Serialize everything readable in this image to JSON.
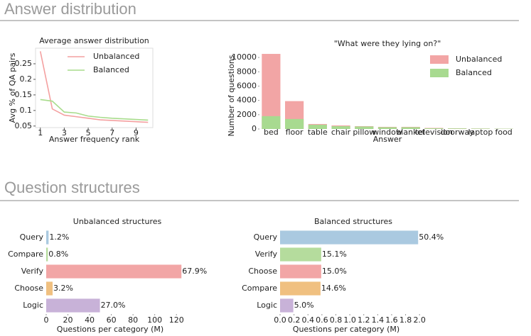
{
  "sections": [
    {
      "title": "Answer distribution"
    },
    {
      "title": "Question structures"
    }
  ],
  "chart_data": [
    {
      "type": "line",
      "title": "Average answer distribution",
      "xlabel": "Answer frequency rank",
      "ylabel": "Avg % of QA pairs",
      "x": [
        1,
        2,
        3,
        4,
        5,
        6,
        7,
        8,
        9,
        10
      ],
      "series": [
        {
          "name": "Unbalanced",
          "color": "#f4a0a0",
          "values": [
            0.29,
            0.105,
            0.085,
            0.08,
            0.075,
            0.07,
            0.068,
            0.066,
            0.064,
            0.062
          ]
        },
        {
          "name": "Balanced",
          "color": "#a8dc8c",
          "values": [
            0.135,
            0.13,
            0.095,
            0.092,
            0.082,
            0.078,
            0.075,
            0.073,
            0.071,
            0.069
          ]
        }
      ],
      "xlim": [
        0.6,
        10.4
      ],
      "xticks": [
        1,
        3,
        5,
        7,
        9
      ],
      "ylim": [
        0.045,
        0.3
      ],
      "yticks": [
        0.05,
        0.1,
        0.15,
        0.2,
        0.25
      ],
      "legend": "upper right"
    },
    {
      "type": "bar",
      "title": "\"What were they lying on?\"",
      "xlabel": "Answer",
      "ylabel": "Number of questions",
      "categories": [
        "bed",
        "floor",
        "table",
        "chair",
        "pillow",
        "window",
        "blanket",
        "television",
        "doorway",
        "laptop",
        "food"
      ],
      "series": [
        {
          "name": "Unbalanced",
          "color": "#f2a5a5",
          "values": [
            10500,
            3900,
            700,
            500,
            400,
            300,
            300,
            150,
            100,
            70,
            50
          ]
        },
        {
          "name": "Balanced",
          "color": "#a8da90",
          "values": [
            1800,
            1400,
            600,
            400,
            350,
            250,
            250,
            100,
            80,
            60,
            40
          ]
        }
      ],
      "ylim": [
        0,
        10900
      ],
      "yticks": [
        0,
        2000,
        4000,
        6000,
        8000,
        10000
      ],
      "legend": "upper right"
    },
    {
      "type": "hbar",
      "title": "Unbalanced structures",
      "xlabel": "Questions per category (M)",
      "categories": [
        "Query",
        "Compare",
        "Verify",
        "Choose",
        "Logic"
      ],
      "values": [
        2.2,
        1.5,
        124.6,
        5.9,
        49.5
      ],
      "colors": [
        "#aac9e0",
        "#b5dc9d",
        "#f2a6a6",
        "#f0c080",
        "#c8b2d8"
      ],
      "shares": [
        1.2,
        0.8,
        67.9,
        3.2,
        27.0
      ],
      "share_labels": [
        "1.2%",
        "0.8%",
        "67.9%",
        "3.2%",
        "27.0%"
      ],
      "xlim": [
        0,
        131
      ],
      "xticks": [
        0,
        20,
        40,
        60,
        80,
        100,
        120
      ]
    },
    {
      "type": "hbar",
      "title": "Balanced structures",
      "xlabel": "Questions per category (M)",
      "categories": [
        "Query",
        "Verify",
        "Choose",
        "Compare",
        "Logic"
      ],
      "values": [
        1.98,
        0.59,
        0.59,
        0.58,
        0.19
      ],
      "colors": [
        "#aac9e0",
        "#b5dc9d",
        "#f2a6a6",
        "#f0c080",
        "#c8b2d8"
      ],
      "shares": [
        50.4,
        15.1,
        15.0,
        14.6,
        5.0
      ],
      "share_labels": [
        "50.4%",
        "15.1%",
        "15.0%",
        "14.6%",
        "5.0%"
      ],
      "xlim": [
        0,
        2.1
      ],
      "xticks": [
        {
          "value": 0,
          "label": "0.0"
        },
        0.2,
        0.4,
        0.6,
        0.8,
        {
          "value": 1,
          "label": "1.0"
        },
        1.2,
        1.4,
        1.6,
        1.8,
        {
          "value": 2,
          "label": "2.0"
        }
      ]
    }
  ]
}
